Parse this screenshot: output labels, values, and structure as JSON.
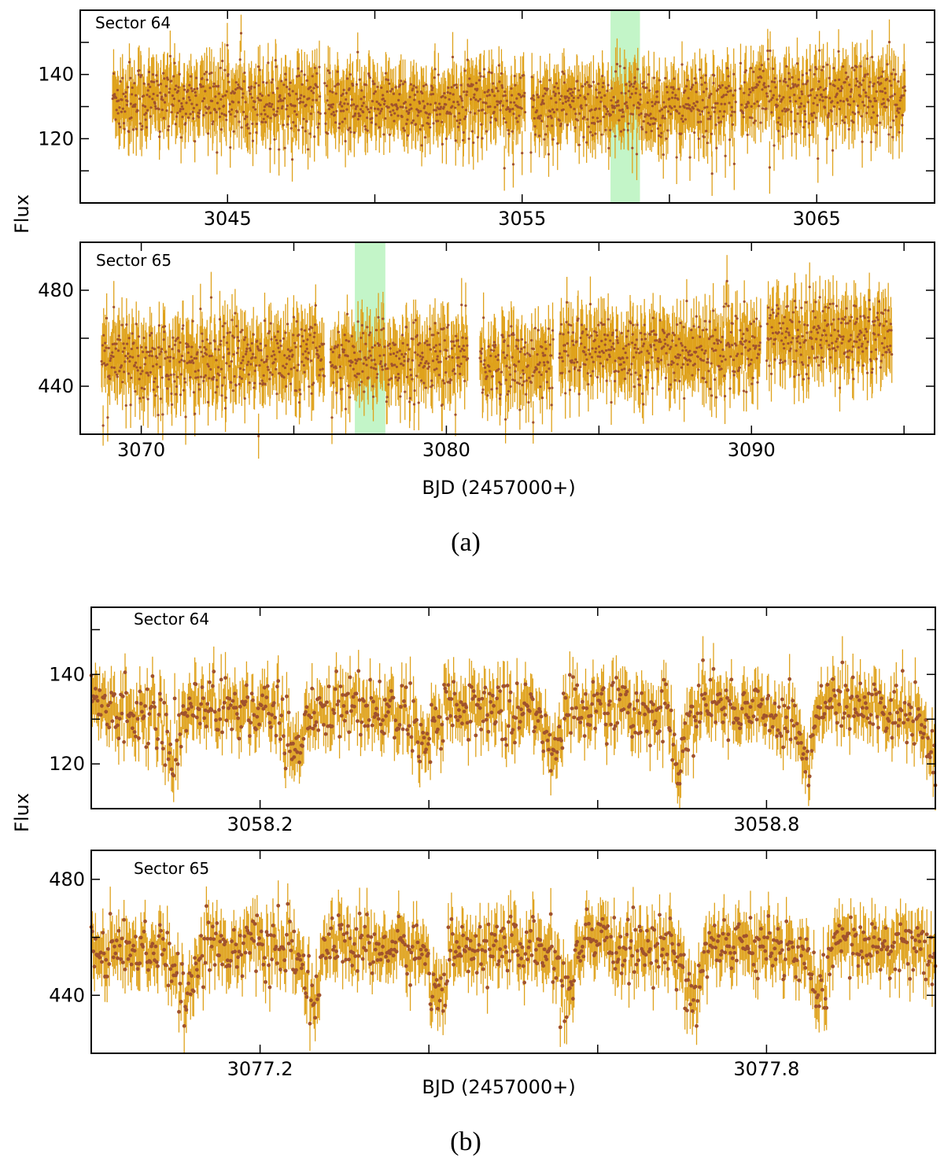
{
  "figure": {
    "caption_a": "(a)",
    "caption_b": "(b)",
    "ylabel_a": "Flux",
    "ylabel_b": "Flux",
    "xlabel_a": "BJD (2457000+)",
    "xlabel_b": "BJD (2457000+)"
  },
  "colors": {
    "point": "#A0522D",
    "errorbar": "#DFA21C",
    "highlight": "#C3F5C8",
    "frame": "#000000"
  },
  "chart_data": [
    {
      "type": "scatter",
      "panel": "a-top",
      "label": "Sector 64",
      "xlim": [
        3040,
        3069
      ],
      "ylim": [
        100,
        160
      ],
      "xticks": [
        3045,
        3050,
        3055,
        3060,
        3065
      ],
      "xtick_labels": [
        "3045",
        "",
        "3055",
        "",
        "3065"
      ],
      "yticks": [
        110,
        120,
        130,
        140,
        150
      ],
      "ytick_labels": [
        "",
        "120",
        "",
        "140",
        ""
      ],
      "highlight_band": [
        3058.0,
        3059.0
      ],
      "segments": [
        {
          "x_start": 3041.1,
          "x_end": 3048.15,
          "mean_flux": 132,
          "scatter": 5,
          "error": 7
        },
        {
          "x_start": 3048.3,
          "x_end": 3055.1,
          "mean_flux": 130,
          "scatter": 5,
          "error": 7
        },
        {
          "x_start": 3055.3,
          "x_end": 3062.25,
          "mean_flux": 130,
          "scatter": 5,
          "error": 7
        },
        {
          "x_start": 3062.4,
          "x_end": 3068.0,
          "mean_flux": 133,
          "scatter": 5,
          "error": 7
        }
      ],
      "eclipse_period_days": 0.15,
      "eclipse_depth": 9
    },
    {
      "type": "scatter",
      "panel": "a-bottom",
      "label": "Sector 65",
      "xlim": [
        3068,
        3096
      ],
      "ylim": [
        420,
        500
      ],
      "xticks": [
        3070,
        3075,
        3080,
        3085,
        3090,
        3095
      ],
      "xtick_labels": [
        "3070",
        "",
        "3080",
        "",
        "3090",
        ""
      ],
      "yticks": [
        440,
        460,
        480
      ],
      "ytick_labels": [
        "440",
        "",
        "480"
      ],
      "highlight_band": [
        3077.0,
        3078.0
      ],
      "segments": [
        {
          "x_start": 3068.7,
          "x_end": 3076.0,
          "mean_flux": 452,
          "scatter": 7,
          "error": 10
        },
        {
          "x_start": 3076.2,
          "x_end": 3080.7,
          "mean_flux": 452,
          "scatter": 7,
          "error": 10
        },
        {
          "x_start": 3081.1,
          "x_end": 3083.5,
          "mean_flux": 450,
          "scatter": 7,
          "error": 10
        },
        {
          "x_start": 3083.7,
          "x_end": 3090.3,
          "mean_flux": 455,
          "scatter": 7,
          "error": 10
        },
        {
          "x_start": 3090.5,
          "x_end": 3094.6,
          "mean_flux": 462,
          "scatter": 7,
          "error": 10
        }
      ],
      "eclipse_period_days": 0.15,
      "eclipse_depth": 14
    },
    {
      "type": "scatter",
      "panel": "b-top",
      "label": "Sector 64",
      "xlim": [
        3058.0,
        3059.0
      ],
      "ylim": [
        110,
        155
      ],
      "xticks": [
        3058.2,
        3058.4,
        3058.6,
        3058.8
      ],
      "xtick_labels": [
        "3058.2",
        "",
        "",
        "3058.8"
      ],
      "yticks": [
        120,
        130,
        140,
        150
      ],
      "ytick_labels": [
        "120",
        "",
        "140",
        ""
      ],
      "segments": [
        {
          "x_start": 3058.0,
          "x_end": 3059.0,
          "mean_flux": 131,
          "scatter": 3.5,
          "error": 5
        }
      ],
      "eclipse_times": [
        3058.096,
        3058.246,
        3058.396,
        3058.549,
        3058.7,
        3058.849,
        3058.998
      ],
      "eclipse_period_days": 0.1505,
      "eclipse_depth": 10
    },
    {
      "type": "scatter",
      "panel": "b-bottom",
      "label": "Sector 65",
      "xlim": [
        3077.0,
        3078.0
      ],
      "ylim": [
        420,
        490
      ],
      "xticks": [
        3077.2,
        3077.4,
        3077.6,
        3077.8
      ],
      "xtick_labels": [
        "3077.2",
        "",
        "",
        "3077.8"
      ],
      "yticks": [
        440,
        460,
        480
      ],
      "ytick_labels": [
        "440",
        "",
        "480"
      ],
      "segments": [
        {
          "x_start": 3077.0,
          "x_end": 3078.0,
          "mean_flux": 455,
          "scatter": 5,
          "error": 8
        }
      ],
      "eclipse_times": [
        3077.113,
        3077.259,
        3077.407,
        3077.559,
        3077.707,
        3077.863
      ],
      "eclipse_period_days": 0.15,
      "eclipse_depth": 16
    }
  ]
}
